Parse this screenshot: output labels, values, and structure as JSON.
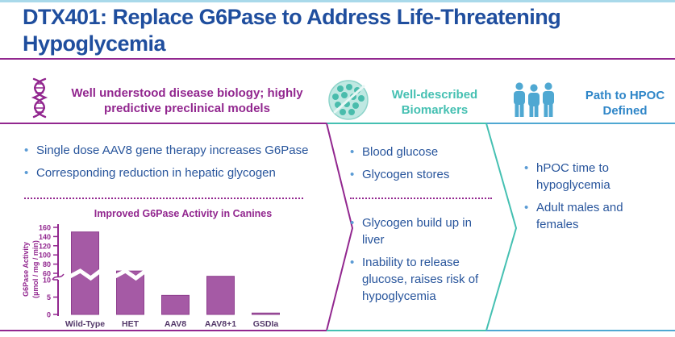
{
  "slide": {
    "title_lines": [
      "DTX401: Replace G6Pase to Address Life-Threatening",
      "Hypoglycemia"
    ]
  },
  "columns": [
    {
      "header": "Well understood disease biology; highly predictive preclinical models",
      "icon": "dna-icon",
      "bullets": [
        "Single dose AAV8 gene therapy increases G6Pase",
        "Corresponding reduction in hepatic glycogen"
      ]
    },
    {
      "header": "Well-described Biomarkers",
      "icon": "petri-dish-icon",
      "bullets_top": [
        "Blood glucose",
        "Glycogen stores"
      ],
      "bullets_bottom": [
        "Glycogen build up in liver",
        "Inability to release glucose, raises risk of hypoglycemia"
      ]
    },
    {
      "header": "Path to HPOC Defined",
      "icon": "people-icon",
      "bullets": [
        "hPOC time to hypoglycemia",
        "Adult males and females"
      ]
    }
  ],
  "chart_data": {
    "type": "bar",
    "title": "Improved G6Pase Activity in Canines",
    "ylabel": "G6Pase Activity (µmol / mg / min)",
    "ylabel_lines": [
      "G6Pase Activity",
      "(µmol / mg / min)"
    ],
    "categories": [
      "Wild-Type",
      "HET",
      "AAV8",
      "AAV8+1",
      "GSDIa"
    ],
    "values": [
      150,
      65,
      5.5,
      11,
      0.4
    ],
    "ylim": [
      0,
      160
    ],
    "axis_break": {
      "lower_max": 10,
      "upper_min": 60
    },
    "yticks_lower": [
      0,
      5,
      10
    ],
    "yticks_upper": [
      60,
      80,
      100,
      120,
      140,
      160
    ],
    "grid": false,
    "legend": "none"
  },
  "colors": {
    "title_blue": "#1F4E9E",
    "body_text_blue": "#28559C",
    "bullet_dot_blue": "#5B9BD5",
    "brand_purple": "#92278F",
    "bar_fill_purple": "#A55AA5",
    "bar_border_purple": "#8E3E8E",
    "x_label_purple": "#54396A",
    "teal": "#45C0B2",
    "hpoc_blue": "#2F86C8",
    "icon_blue": "#4FA8D2",
    "top_strip_blue": "#A9D9EA"
  }
}
